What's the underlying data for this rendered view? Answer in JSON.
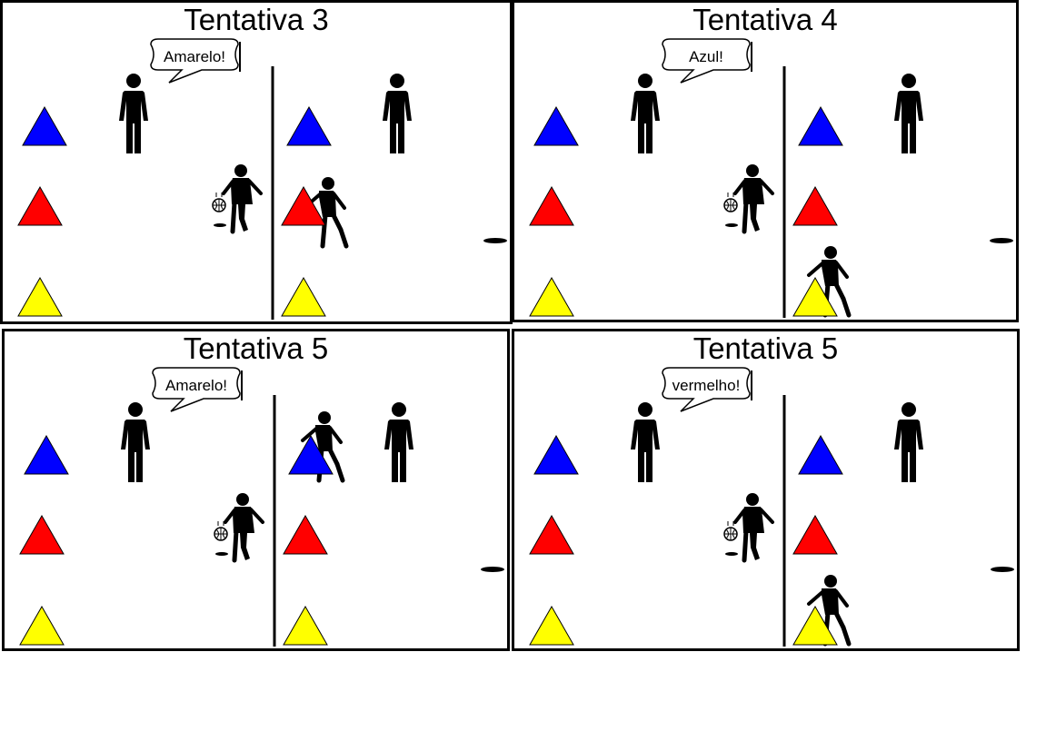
{
  "panels": [
    {
      "title": "Tentativa 3",
      "speech": "Amarelo!",
      "runner_target": "red"
    },
    {
      "title": "Tentativa 4",
      "speech": "Azul!",
      "runner_target": "yellow"
    },
    {
      "title": "Tentativa 5",
      "speech": "Amarelo!",
      "runner_target": "blue"
    },
    {
      "title": "Tentativa 5",
      "speech": "vermelho!",
      "runner_target": "yellow"
    }
  ],
  "colors": {
    "blue": "#0000ff",
    "red": "#ff0000",
    "yellow": "#ffff00",
    "ink": "#000000"
  },
  "icons": [
    "person-icon",
    "dribbling-player-icon",
    "running-player-icon",
    "triangle-cone-icon",
    "speech-bubble-icon",
    "hole-icon"
  ]
}
